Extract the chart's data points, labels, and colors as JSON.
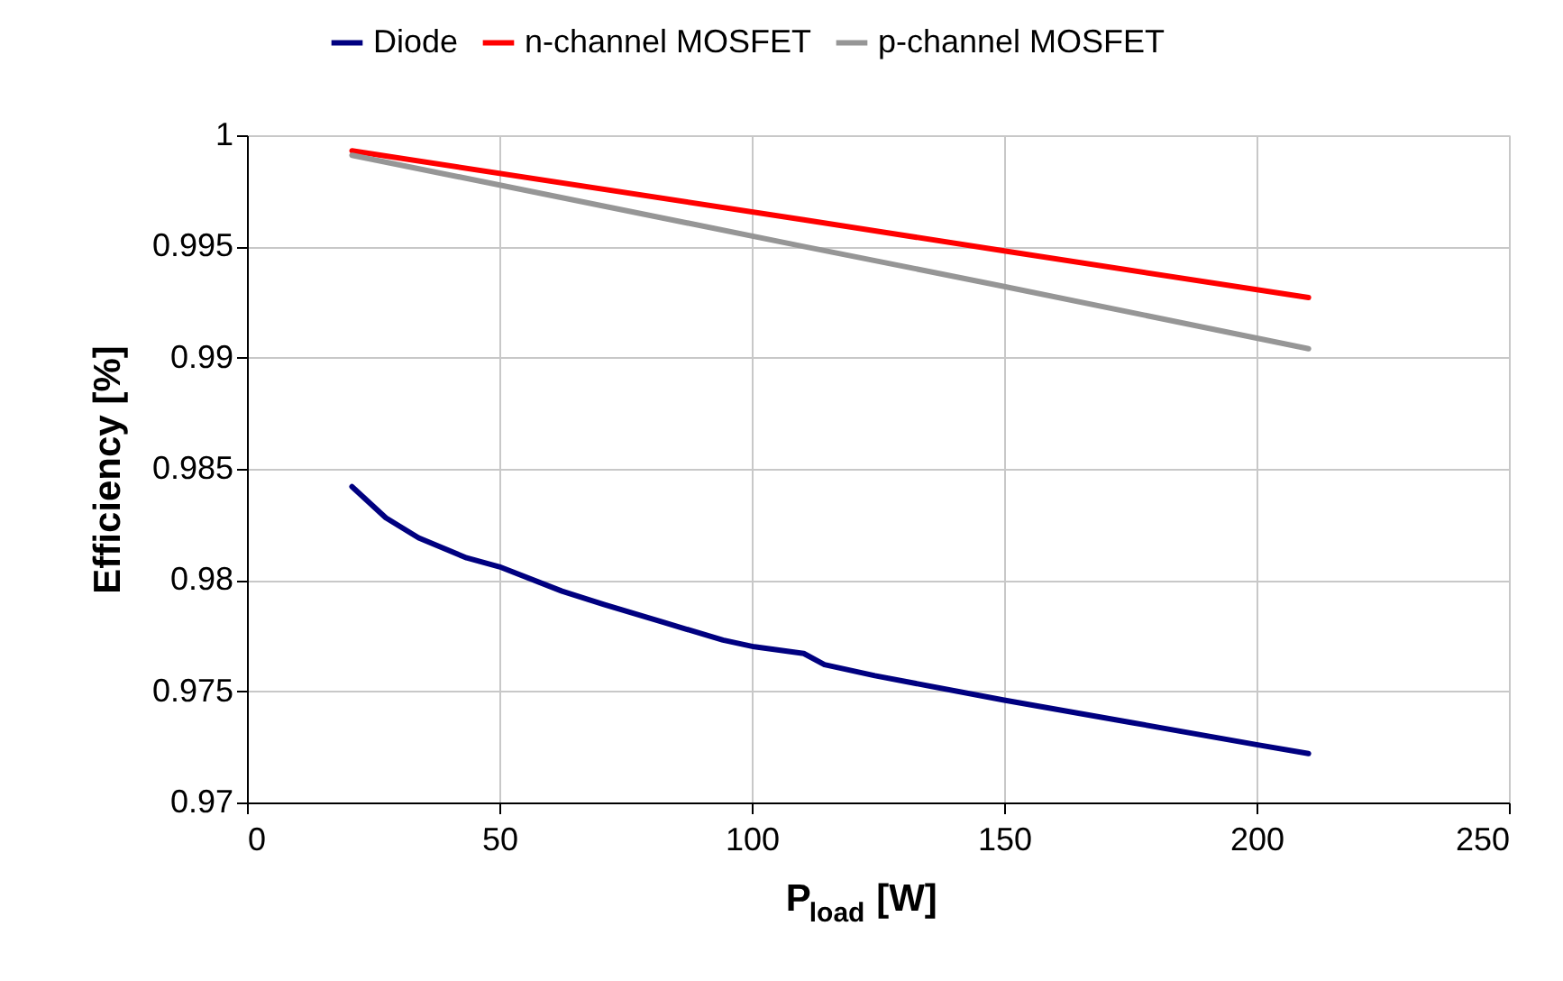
{
  "chart_data": {
    "type": "line",
    "xlabel": "P$_{load}$ [W]",
    "ylabel": "Efficiency [%]",
    "xlim": [
      0,
      250
    ],
    "xticks": [
      0,
      50,
      100,
      150,
      200,
      250
    ],
    "ylim": [
      0.97,
      1
    ],
    "yticks": [
      0.97,
      0.975,
      0.98,
      0.985,
      0.99,
      0.995,
      1
    ],
    "grid": true,
    "legend": "top",
    "marker": "none",
    "line_style": "solid",
    "series": [
      {
        "name": "Diode",
        "color": "#000080",
        "x": [
          20.8,
          27.5,
          34,
          43.5,
          50,
          62.4,
          70.7,
          82.5,
          94.3,
          100.5,
          110.3,
          114.4,
          124.4,
          150,
          175.1,
          200,
          210.3
        ],
        "values": [
          0.9842,
          0.9828,
          0.9819,
          0.981,
          0.9806,
          0.9795,
          0.9789,
          0.9781,
          0.9773,
          0.977,
          0.9767,
          0.9762,
          0.9757,
          0.9746,
          0.9736,
          0.9726,
          0.9722
        ]
      },
      {
        "name": "n-channel MOSFET",
        "color": "#ff0000",
        "x": [
          20.8,
          110.3,
          150,
          210.3
        ],
        "values": [
          0.9993,
          0.9962,
          0.9948,
          0.9927
        ]
      },
      {
        "name": "p-channel MOSFET",
        "color": "#969696",
        "x": [
          20.8,
          110.3,
          150,
          210.3
        ],
        "values": [
          0.9991,
          0.995,
          0.9932,
          0.9904
        ]
      }
    ]
  }
}
